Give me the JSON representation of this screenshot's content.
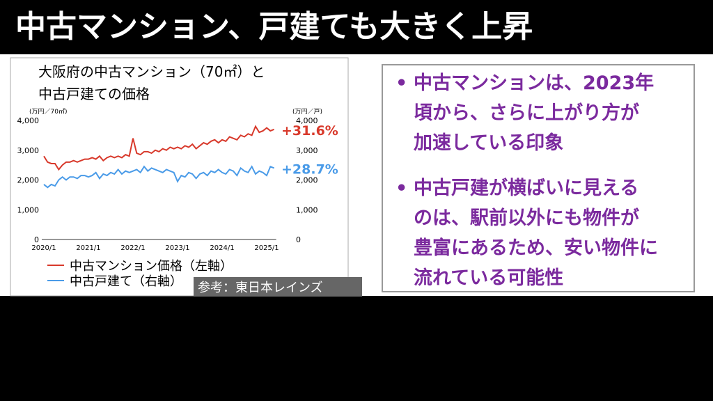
{
  "header": {
    "title": "中古マンション、戸建ても大きく上昇"
  },
  "chart_data": {
    "type": "line",
    "title": [
      "大阪府の中古マンション（70㎡）と",
      "中古戸建ての価格"
    ],
    "ylabel": "(万円／70㎡)",
    "y2label": "(万円／戸)",
    "categories": [
      "2020/1",
      null,
      null,
      null,
      null,
      null,
      null,
      null,
      null,
      null,
      null,
      null,
      "2021/1",
      null,
      null,
      null,
      null,
      null,
      null,
      null,
      null,
      null,
      null,
      null,
      "2022/1",
      null,
      null,
      null,
      null,
      null,
      null,
      null,
      null,
      null,
      null,
      null,
      "2023/1",
      null,
      null,
      null,
      null,
      null,
      null,
      null,
      null,
      null,
      null,
      null,
      "2024/1",
      null,
      null,
      null,
      null,
      null,
      null,
      null,
      null,
      null,
      null,
      null,
      "2025/1",
      null,
      null
    ],
    "series": [
      {
        "name": "中古マンション価格（左軸）",
        "color": "#d8392b",
        "annotation": "+31.6%",
        "values": [
          2800,
          2600,
          2550,
          2550,
          2350,
          2500,
          2600,
          2600,
          2650,
          2600,
          2650,
          2700,
          2700,
          2750,
          2700,
          2800,
          2650,
          2750,
          2800,
          2750,
          2800,
          2750,
          2850,
          2800,
          3400,
          2900,
          2850,
          2950,
          2950,
          2900,
          3000,
          2950,
          3050,
          3000,
          3100,
          3050,
          3100,
          3050,
          3150,
          3100,
          3200,
          3050,
          3150,
          3250,
          3200,
          3300,
          3350,
          3250,
          3350,
          3300,
          3450,
          3400,
          3350,
          3500,
          3450,
          3550,
          3500,
          3800,
          3600,
          3650,
          3750,
          3650,
          3700
        ]
      },
      {
        "name": "中古戸建て（右軸）",
        "color": "#4a9be8",
        "axis": "y2",
        "annotation": "+28.7%",
        "values": [
          1850,
          1750,
          1850,
          1800,
          2000,
          2100,
          2000,
          2100,
          2100,
          2050,
          2150,
          2150,
          2100,
          2150,
          2250,
          2050,
          2200,
          2150,
          2250,
          2200,
          2350,
          2200,
          2300,
          2250,
          2300,
          2350,
          2250,
          2450,
          2300,
          2400,
          2350,
          2300,
          2250,
          2350,
          2300,
          2250,
          1950,
          2150,
          2100,
          2250,
          2200,
          2050,
          2200,
          2250,
          2150,
          2300,
          2250,
          2350,
          2250,
          2200,
          2350,
          2300,
          2150,
          2400,
          2300,
          2250,
          2450,
          2200,
          2300,
          2250,
          2150,
          2450,
          2400
        ]
      }
    ],
    "ylim": [
      0,
      4000
    ],
    "yticks": [
      0,
      {
        "value": 1000,
        "label": "1,000"
      },
      {
        "value": 2000,
        "label": "2,000"
      },
      {
        "value": 3000,
        "label": "3,000"
      },
      {
        "value": 4000,
        "label": "4,000"
      }
    ],
    "y2lim": [
      0,
      4000
    ],
    "y2ticks": [
      0,
      {
        "value": 1000,
        "label": "1,000"
      },
      {
        "value": 2000,
        "label": "2,000"
      },
      {
        "value": 3000,
        "label": "3,000"
      },
      {
        "value": 4000,
        "label": "4,000"
      }
    ],
    "grid": false,
    "source": "参考：東日本レインズ"
  },
  "bullets": [
    {
      "lines": [
        "中古マンションは、2023年",
        "頃から、さらに上がり方が",
        "加速している印象"
      ]
    },
    {
      "lines": [
        "中古戸建が横ばいに見える",
        "のは、駅前以外にも物件が",
        "豊富にあるため、安い物件に",
        "流れている可能性"
      ]
    }
  ]
}
